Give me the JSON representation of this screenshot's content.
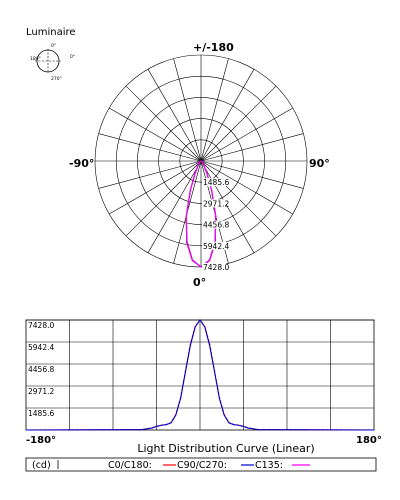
{
  "luminaire": {
    "title": "Luminaire",
    "inset_labels": {
      "top": "0°",
      "right": "0°",
      "left": "180°",
      "bottom": "270°"
    }
  },
  "polar": {
    "top_label": "+/-180",
    "bottom_label": "0°",
    "left_label": "-90°",
    "right_label": "90°",
    "ring_labels": [
      "1485.6",
      "2971.2",
      "4456.8",
      "5942.4",
      "7428.0"
    ]
  },
  "linear": {
    "x_left_label": "-180°",
    "x_right_label": "180°",
    "title": "Light Distribution Curve (Linear)",
    "y_tick_labels": [
      "7428.0",
      "5942.4",
      "4456.8",
      "2971.2",
      "1485.6"
    ]
  },
  "legend": {
    "unit": "(cd)",
    "c0": "C0/C180:",
    "c90": "C90/C270:",
    "c135": "C135:"
  },
  "colors": {
    "c0": "#ff0000",
    "c90": "#0000cc",
    "c135": "#ff00ff",
    "grid": "#000000"
  },
  "chart_data": [
    {
      "type": "polar",
      "title": "",
      "angle_range": [
        -180,
        180
      ],
      "rmax": 7428.0,
      "ring_values": [
        1485.6,
        2971.2,
        4456.8,
        5942.4,
        7428.0
      ],
      "angles": [
        0,
        5,
        10,
        15,
        20,
        25,
        30,
        35,
        40,
        45,
        50,
        55,
        60,
        70,
        80,
        90,
        100,
        120,
        150,
        180
      ],
      "series": [
        {
          "name": "C0/C180",
          "values": [
            7428,
            7000,
            5800,
            4000,
            2200,
            1050,
            500,
            370,
            330,
            250,
            140,
            70,
            30,
            10,
            5,
            0,
            0,
            0,
            0,
            0
          ]
        },
        {
          "name": "C90/C270",
          "values": [
            7428,
            6950,
            5700,
            3950,
            2150,
            1000,
            480,
            360,
            320,
            240,
            130,
            65,
            28,
            10,
            5,
            0,
            0,
            0,
            0,
            0
          ]
        },
        {
          "name": "C135",
          "values": [
            7428,
            6980,
            5750,
            3980,
            2180,
            1020,
            490,
            365,
            325,
            245,
            135,
            68,
            29,
            10,
            5,
            0,
            0,
            0,
            0,
            0
          ]
        }
      ]
    },
    {
      "type": "line",
      "title": "Light Distribution Curve (Linear)",
      "xlim": [
        -180,
        180
      ],
      "ylim": [
        0,
        7428.0
      ],
      "y_ticks": [
        1485.6,
        2971.2,
        4456.8,
        5942.4,
        7428.0
      ],
      "grid": true,
      "x": [
        -180,
        -60,
        -50,
        -45,
        -40,
        -35,
        -30,
        -25,
        -20,
        -15,
        -10,
        -5,
        0,
        5,
        10,
        15,
        20,
        25,
        30,
        35,
        40,
        45,
        50,
        60,
        180
      ],
      "series": [
        {
          "name": "C0/C180",
          "values": [
            0,
            30,
            140,
            250,
            330,
            370,
            500,
            1050,
            2200,
            4000,
            5800,
            7000,
            7428,
            7000,
            5800,
            4000,
            2200,
            1050,
            500,
            370,
            330,
            250,
            140,
            30,
            0
          ]
        },
        {
          "name": "C90/C270",
          "values": [
            0,
            28,
            130,
            240,
            320,
            360,
            480,
            1000,
            2150,
            3950,
            5700,
            6950,
            7428,
            6950,
            5700,
            3950,
            2150,
            1000,
            480,
            360,
            320,
            240,
            130,
            28,
            0
          ]
        }
      ]
    }
  ]
}
